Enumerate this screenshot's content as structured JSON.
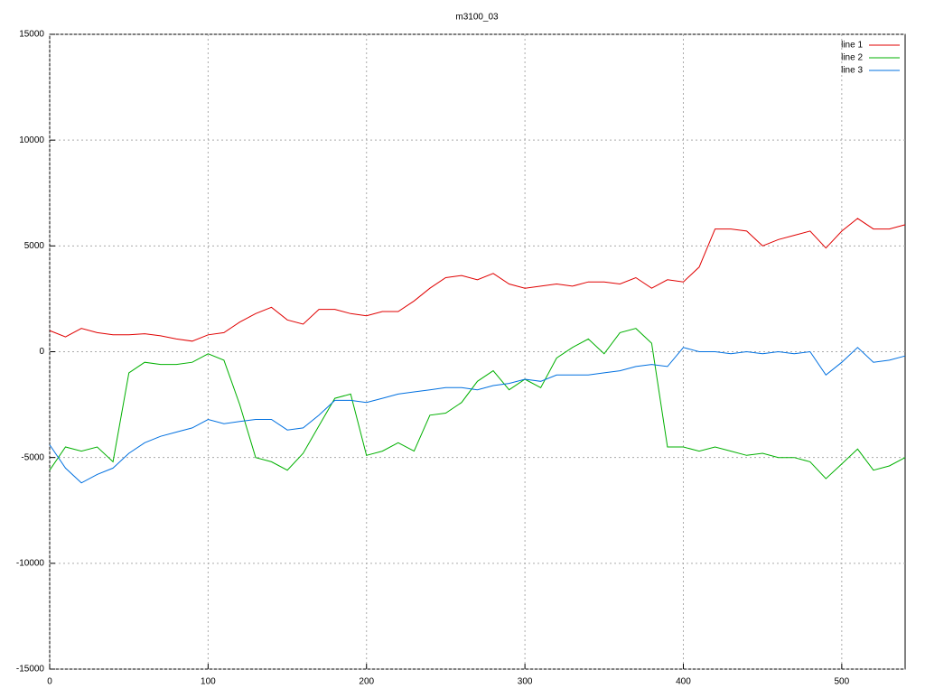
{
  "chart_data": {
    "type": "line",
    "title": "m3100_03",
    "x": [
      0,
      10,
      20,
      30,
      40,
      50,
      60,
      70,
      80,
      90,
      100,
      110,
      120,
      130,
      140,
      150,
      160,
      170,
      180,
      190,
      200,
      210,
      220,
      230,
      240,
      250,
      260,
      270,
      280,
      290,
      300,
      310,
      320,
      330,
      340,
      350,
      360,
      370,
      380,
      390,
      400,
      410,
      420,
      430,
      440,
      450,
      460,
      470,
      480,
      490,
      500,
      510,
      520,
      530,
      540
    ],
    "series": [
      {
        "name": "line 1",
        "color": "#e00000",
        "values": [
          1000,
          700,
          1100,
          900,
          800,
          800,
          850,
          750,
          600,
          500,
          800,
          900,
          1400,
          1800,
          2100,
          1500,
          1300,
          2000,
          2000,
          1800,
          1700,
          1900,
          1900,
          2400,
          3000,
          3500,
          3600,
          3400,
          3700,
          3200,
          3000,
          3100,
          3200,
          3100,
          3300,
          3300,
          3200,
          3500,
          3000,
          3400,
          3300,
          4000,
          5800,
          5800,
          5700,
          5000,
          5300,
          5500,
          5700,
          4900,
          5700,
          6300,
          5800,
          5800,
          6000
        ]
      },
      {
        "name": "line 2",
        "color": "#00b000",
        "values": [
          -5600,
          -4500,
          -4700,
          -4500,
          -5200,
          -1000,
          -500,
          -600,
          -600,
          -500,
          -100,
          -400,
          -2500,
          -5000,
          -5200,
          -5600,
          -4800,
          -3500,
          -2200,
          -2000,
          -4900,
          -4700,
          -4300,
          -4700,
          -3000,
          -2900,
          -2400,
          -1400,
          -900,
          -1800,
          -1300,
          -1700,
          -300,
          200,
          600,
          -100,
          900,
          1100,
          400,
          -4500,
          -4500,
          -4700,
          -4500,
          -4700,
          -4900,
          -4800,
          -5000,
          -5000,
          -5200,
          -6000,
          -5300,
          -4600,
          -5600,
          -5400,
          -5000
        ]
      },
      {
        "name": "line 3",
        "color": "#0070e0",
        "values": [
          -4400,
          -5500,
          -6200,
          -5800,
          -5500,
          -4800,
          -4300,
          -4000,
          -3800,
          -3600,
          -3200,
          -3400,
          -3300,
          -3200,
          -3200,
          -3700,
          -3600,
          -3000,
          -2300,
          -2300,
          -2400,
          -2200,
          -2000,
          -1900,
          -1800,
          -1700,
          -1700,
          -1800,
          -1600,
          -1500,
          -1300,
          -1400,
          -1100,
          -1100,
          -1100,
          -1000,
          -900,
          -700,
          -600,
          -700,
          200,
          0,
          0,
          -100,
          0,
          -100,
          0,
          -100,
          0,
          -1100,
          -500,
          200,
          -500,
          -400,
          -200
        ]
      }
    ],
    "xlim": [
      0,
      540
    ],
    "xticks": [
      0,
      100,
      200,
      300,
      400,
      500
    ],
    "ylim": [
      -15000,
      15000
    ],
    "yticks": [
      -15000,
      -10000,
      -5000,
      0,
      5000,
      10000,
      15000
    ],
    "grid": true,
    "legend": "top-right"
  }
}
